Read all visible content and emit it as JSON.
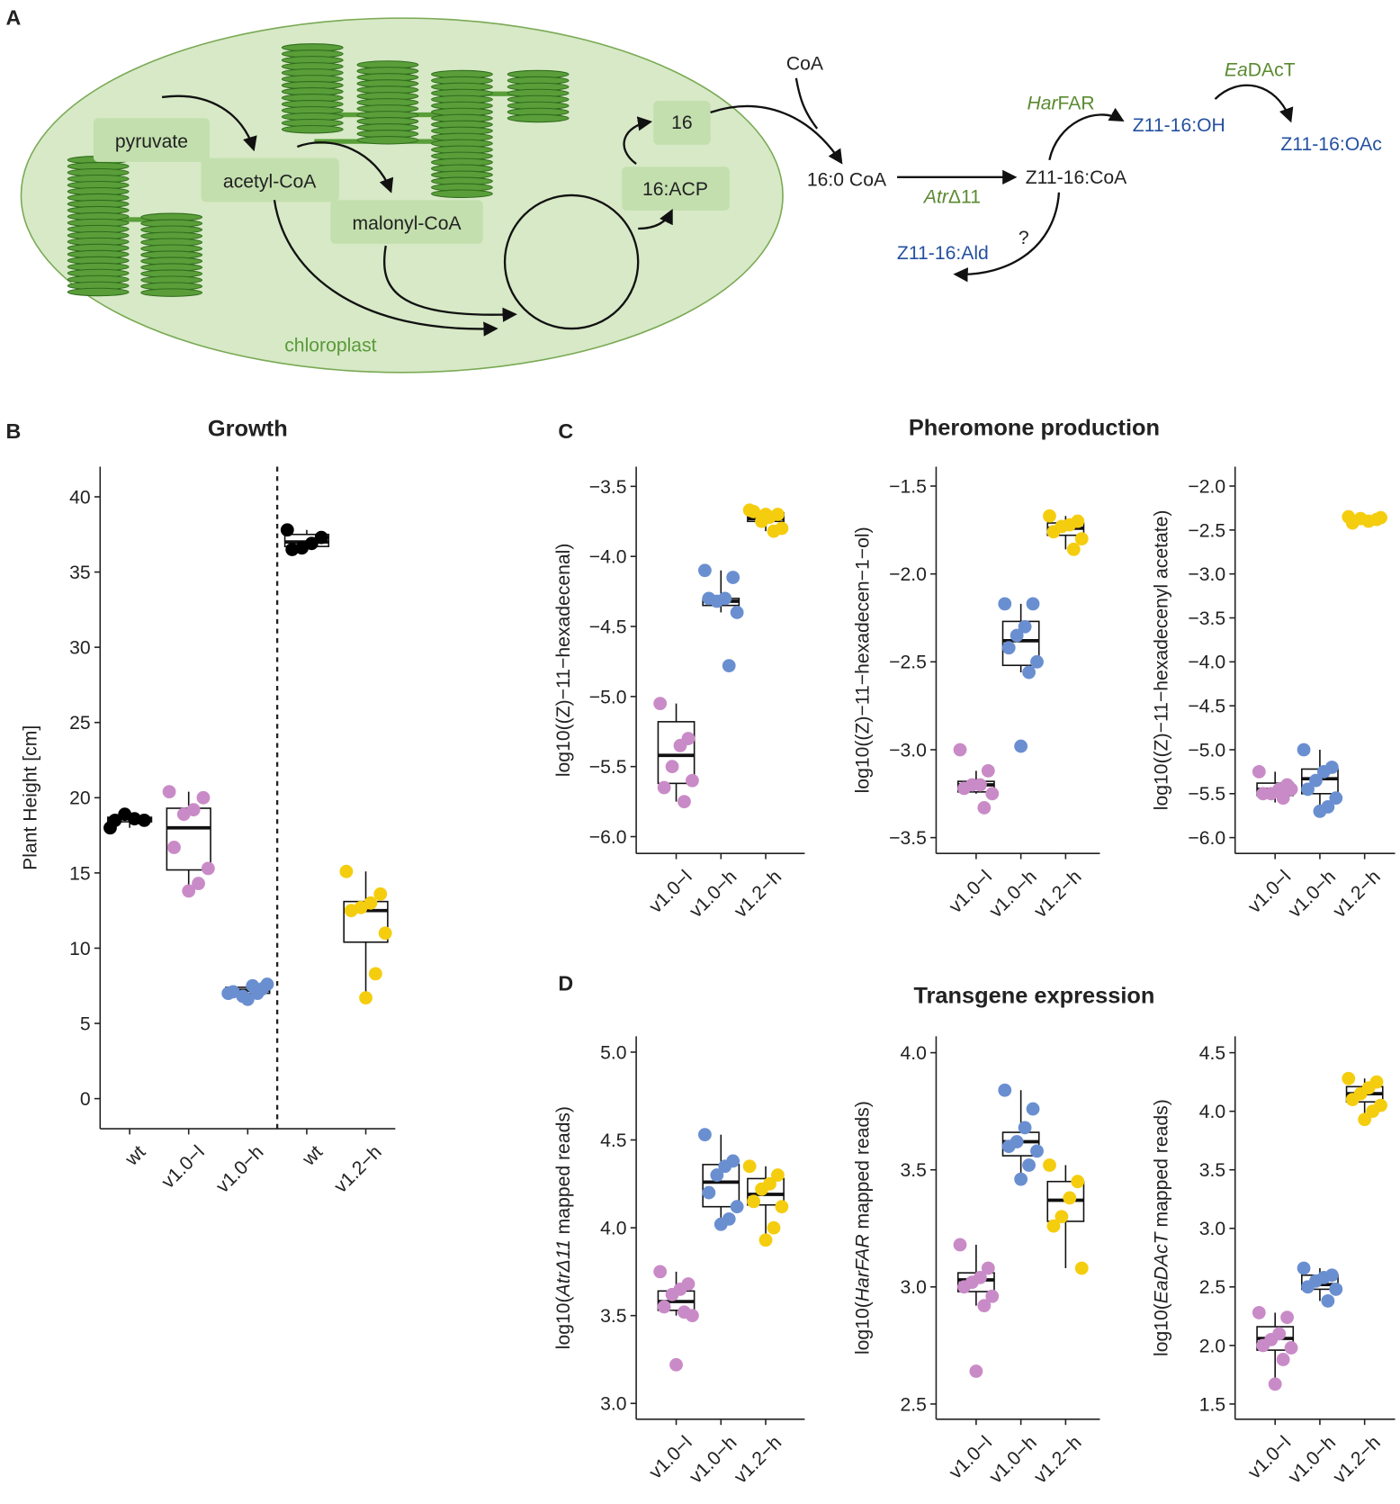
{
  "diagram": {
    "label": "A",
    "nodes": [
      "pyruvate",
      "acetyl-CoA",
      "malonyl-CoA",
      "16",
      "16:ACP",
      "chloroplast",
      "CoA",
      "16:0 CoA",
      "Z11-16:CoA",
      "Z11-16:OH",
      "Z11-16:OAc",
      "Z11-16:Ald",
      "?"
    ],
    "enzymes": {
      "far": [
        "Har",
        "FAR"
      ],
      "dact": [
        "Ea",
        "DAcT"
      ],
      "desat": [
        "Atr",
        "Δ11"
      ]
    }
  },
  "panels": {
    "b": "B",
    "c": "C",
    "d": "D",
    "c_title": "Pheromone production",
    "d_title": "Transgene expression"
  },
  "chart_data": [
    {
      "type": "box",
      "title": "Growth",
      "ylabel": "Plant Height [cm]",
      "divider_after": 2,
      "categories": [
        "wt",
        "v1.0−l",
        "v1.0−h",
        "wt",
        "v1.2−h"
      ],
      "ylim": [
        -2,
        42
      ],
      "yticks": [
        0,
        5,
        10,
        15,
        20,
        25,
        30,
        35,
        40
      ],
      "groups": [
        {
          "color": "#000000",
          "points": [
            18.0,
            18.5,
            18.6,
            18.9,
            18.5
          ],
          "box": {
            "low": 18.0,
            "q1": 18.4,
            "median": 18.6,
            "q3": 18.7,
            "high": 19.0
          }
        },
        {
          "color": "#c98bc7",
          "points": [
            20.4,
            20.0,
            19.2,
            18.9,
            16.7,
            15.3,
            14.3,
            13.8
          ],
          "box": {
            "low": 13.8,
            "q1": 15.2,
            "median": 18.0,
            "q3": 19.3,
            "high": 20.4
          }
        },
        {
          "color": "#6a8fd1",
          "points": [
            7.0,
            7.3,
            7.5,
            6.8,
            7.1,
            7.6,
            7.0,
            6.6
          ],
          "box": {
            "low": 6.6,
            "q1": 7.0,
            "median": 7.2,
            "q3": 7.4,
            "high": 7.6
          }
        },
        {
          "color": "#000000",
          "points": [
            37.8,
            37.3,
            36.9,
            36.6,
            36.5
          ],
          "box": {
            "low": 36.5,
            "q1": 36.7,
            "median": 37.0,
            "q3": 37.5,
            "high": 37.8
          }
        },
        {
          "color": "#f5cd0f",
          "points": [
            15.1,
            13.6,
            13.0,
            12.7,
            12.5,
            11.0,
            8.3,
            6.7
          ],
          "box": {
            "low": 6.7,
            "q1": 10.4,
            "median": 12.5,
            "q3": 13.1,
            "high": 15.1
          }
        }
      ]
    },
    {
      "type": "box",
      "ylabel": "log10((Z)−11−hexadecenal)",
      "categories": [
        "v1.0−l",
        "v1.0−h",
        "v1.2−h"
      ],
      "ylim": [
        -6.12,
        -3.36
      ],
      "yticks": [
        {
          "value": -6.0,
          "label": "−6.0"
        },
        {
          "value": -5.5,
          "label": "−5.5"
        },
        {
          "value": -5.0,
          "label": "−5.0"
        },
        {
          "value": -4.5,
          "label": "−4.5"
        },
        {
          "value": -4.0,
          "label": "−4.0"
        },
        {
          "value": -3.5,
          "label": "−3.5"
        }
      ],
      "groups": [
        {
          "color": "#c98bc7",
          "points": [
            -5.05,
            -5.3,
            -5.35,
            -5.5,
            -5.65,
            -5.6,
            -5.75
          ],
          "box": {
            "low": -5.75,
            "q1": -5.62,
            "median": -5.42,
            "q3": -5.18,
            "high": -5.05
          }
        },
        {
          "color": "#6a8fd1",
          "points": [
            -4.1,
            -4.15,
            -4.3,
            -4.32,
            -4.3,
            -4.4,
            -4.78
          ],
          "box": {
            "low": -4.4,
            "q1": -4.35,
            "median": -4.32,
            "q3": -4.3,
            "high": -4.1
          }
        },
        {
          "color": "#f5cd0f",
          "points": [
            -3.67,
            -3.7,
            -3.72,
            -3.75,
            -3.68,
            -3.8,
            -3.82,
            -3.7
          ],
          "box": {
            "low": -3.82,
            "q1": -3.75,
            "median": -3.73,
            "q3": -3.69,
            "high": -3.67
          }
        }
      ]
    },
    {
      "type": "box",
      "ylabel": "log10((Z)−11−hexadecen−1−ol)",
      "categories": [
        "v1.0−l",
        "v1.0−h",
        "v1.2−h"
      ],
      "ylim": [
        -3.59,
        -1.39
      ],
      "yticks": [
        {
          "value": -3.5,
          "label": "−3.5"
        },
        {
          "value": -3.0,
          "label": "−3.0"
        },
        {
          "value": -2.5,
          "label": "−2.5"
        },
        {
          "value": -2.0,
          "label": "−2.0"
        },
        {
          "value": -1.5,
          "label": "−1.5"
        }
      ],
      "groups": [
        {
          "color": "#c98bc7",
          "points": [
            -3.0,
            -3.12,
            -3.2,
            -3.2,
            -3.22,
            -3.25,
            -3.33
          ],
          "box": {
            "low": -3.25,
            "q1": -3.24,
            "median": -3.2,
            "q3": -3.18,
            "high": -3.12
          }
        },
        {
          "color": "#6a8fd1",
          "points": [
            -2.17,
            -2.17,
            -2.3,
            -2.35,
            -2.42,
            -2.5,
            -2.56,
            -2.98
          ],
          "box": {
            "low": -2.56,
            "q1": -2.52,
            "median": -2.38,
            "q3": -2.27,
            "high": -2.17
          }
        },
        {
          "color": "#f5cd0f",
          "points": [
            -1.67,
            -1.7,
            -1.72,
            -1.73,
            -1.76,
            -1.8,
            -1.86
          ],
          "box": {
            "low": -1.86,
            "q1": -1.78,
            "median": -1.74,
            "q3": -1.71,
            "high": -1.67
          }
        }
      ]
    },
    {
      "type": "box",
      "ylabel": "log10((Z)−11−hexadecenyl acetate)",
      "categories": [
        "v1.0−l",
        "v1.0−h",
        "v1.2−h"
      ],
      "ylim": [
        -6.18,
        -1.78
      ],
      "yticks": [
        {
          "value": -6.0,
          "label": "−6.0"
        },
        {
          "value": -5.5,
          "label": "−5.5"
        },
        {
          "value": -5.0,
          "label": "−5.0"
        },
        {
          "value": -4.5,
          "label": "−4.5"
        },
        {
          "value": -4.0,
          "label": "−4.0"
        },
        {
          "value": -3.5,
          "label": "−3.5"
        },
        {
          "value": -3.0,
          "label": "−3.0"
        },
        {
          "value": -2.5,
          "label": "−2.5"
        },
        {
          "value": -2.0,
          "label": "−2.0"
        }
      ],
      "groups": [
        {
          "color": "#c98bc7",
          "points": [
            -5.25,
            -5.4,
            -5.45,
            -5.5,
            -5.5,
            -5.45,
            -5.55
          ],
          "box": {
            "low": -5.6,
            "q1": -5.52,
            "median": -5.45,
            "q3": -5.38,
            "high": -5.25
          }
        },
        {
          "color": "#6a8fd1",
          "points": [
            -5.0,
            -5.2,
            -5.25,
            -5.35,
            -5.45,
            -5.55,
            -5.65,
            -5.7
          ],
          "box": {
            "low": -5.7,
            "q1": -5.5,
            "median": -5.33,
            "q3": -5.22,
            "high": -5.0
          }
        },
        {
          "color": "#f5cd0f",
          "points": [
            -2.35,
            -2.38,
            -2.4,
            -2.37,
            -2.42,
            -2.36
          ],
          "box": {
            "low": -2.42,
            "q1": -2.41,
            "median": -2.38,
            "q3": -2.36,
            "high": -2.35
          }
        }
      ]
    },
    {
      "type": "box",
      "ylabel": [
        {
          "text": "log10("
        },
        {
          "text": "AtrΔ11",
          "italic": true
        },
        {
          "text": " mapped reads)"
        }
      ],
      "categories": [
        "v1.0−l",
        "v1.0−h",
        "v1.2−h"
      ],
      "ylim": [
        2.91,
        5.09
      ],
      "yticks": [
        {
          "value": 3,
          "label": "3.0"
        },
        {
          "value": 3.5,
          "label": "3.5"
        },
        {
          "value": 4,
          "label": "4.0"
        },
        {
          "value": 4.5,
          "label": "4.5"
        },
        {
          "value": 5,
          "label": "5.0"
        }
      ],
      "groups": [
        {
          "color": "#c98bc7",
          "points": [
            3.75,
            3.68,
            3.65,
            3.62,
            3.55,
            3.5,
            3.52,
            3.22
          ],
          "box": {
            "low": 3.5,
            "q1": 3.53,
            "median": 3.58,
            "q3": 3.64,
            "high": 3.75
          }
        },
        {
          "color": "#6a8fd1",
          "points": [
            4.53,
            4.38,
            4.35,
            4.3,
            4.2,
            4.12,
            4.05,
            4.02
          ],
          "box": {
            "low": 4.02,
            "q1": 4.12,
            "median": 4.26,
            "q3": 4.36,
            "high": 4.53
          }
        },
        {
          "color": "#f5cd0f",
          "points": [
            4.35,
            4.3,
            4.25,
            4.22,
            4.15,
            4.12,
            4.0,
            3.93
          ],
          "box": {
            "low": 3.93,
            "q1": 4.13,
            "median": 4.19,
            "q3": 4.28,
            "high": 4.35
          }
        }
      ]
    },
    {
      "type": "box",
      "ylabel": [
        {
          "text": "log10("
        },
        {
          "text": "HarFAR",
          "italic": true
        },
        {
          "text": " mapped reads)"
        }
      ],
      "categories": [
        "v1.0−l",
        "v1.0−h",
        "v1.2−h"
      ],
      "ylim": [
        2.435,
        4.07
      ],
      "yticks": [
        {
          "value": 2.5,
          "label": "2.5"
        },
        {
          "value": 3,
          "label": "3.0"
        },
        {
          "value": 3.5,
          "label": "3.5"
        },
        {
          "value": 4,
          "label": "4.0"
        }
      ],
      "groups": [
        {
          "color": "#c98bc7",
          "points": [
            3.18,
            3.08,
            3.04,
            3.02,
            3.0,
            2.96,
            2.92,
            2.64
          ],
          "box": {
            "low": 2.92,
            "q1": 2.98,
            "median": 3.03,
            "q3": 3.06,
            "high": 3.18
          }
        },
        {
          "color": "#6a8fd1",
          "points": [
            3.84,
            3.76,
            3.68,
            3.62,
            3.6,
            3.58,
            3.52,
            3.46
          ],
          "box": {
            "low": 3.46,
            "q1": 3.56,
            "median": 3.62,
            "q3": 3.66,
            "high": 3.84
          }
        },
        {
          "color": "#f5cd0f",
          "points": [
            3.52,
            3.45,
            3.38,
            3.3,
            3.26,
            3.08
          ],
          "box": {
            "low": 3.08,
            "q1": 3.28,
            "median": 3.37,
            "q3": 3.45,
            "high": 3.52
          }
        }
      ]
    },
    {
      "type": "box",
      "ylabel": [
        {
          "text": "log10("
        },
        {
          "text": "EaDAcT",
          "italic": true
        },
        {
          "text": " mapped reads)"
        }
      ],
      "categories": [
        "v1.0−l",
        "v1.0−h",
        "v1.2−h"
      ],
      "ylim": [
        1.37,
        4.64
      ],
      "yticks": [
        {
          "value": 1.5,
          "label": "1.5"
        },
        {
          "value": 2,
          "label": "2.0"
        },
        {
          "value": 2.5,
          "label": "2.5"
        },
        {
          "value": 3,
          "label": "3.0"
        },
        {
          "value": 3.5,
          "label": "3.5"
        },
        {
          "value": 4,
          "label": "4.0"
        },
        {
          "value": 4.5,
          "label": "4.5"
        }
      ],
      "groups": [
        {
          "color": "#c98bc7",
          "points": [
            2.28,
            2.24,
            2.1,
            2.05,
            2.0,
            1.98,
            1.88,
            1.67
          ],
          "box": {
            "low": 1.67,
            "q1": 1.96,
            "median": 2.06,
            "q3": 2.16,
            "high": 2.28
          }
        },
        {
          "color": "#6a8fd1",
          "points": [
            2.66,
            2.6,
            2.58,
            2.55,
            2.5,
            2.48,
            2.38
          ],
          "box": {
            "low": 2.38,
            "q1": 2.48,
            "median": 2.52,
            "q3": 2.6,
            "high": 2.66
          }
        },
        {
          "color": "#f5cd0f",
          "points": [
            4.28,
            4.25,
            4.2,
            4.15,
            4.1,
            4.05,
            4.0,
            3.93
          ],
          "box": {
            "low": 3.93,
            "q1": 4.08,
            "median": 4.15,
            "q3": 4.21,
            "high": 4.28
          }
        }
      ]
    }
  ]
}
